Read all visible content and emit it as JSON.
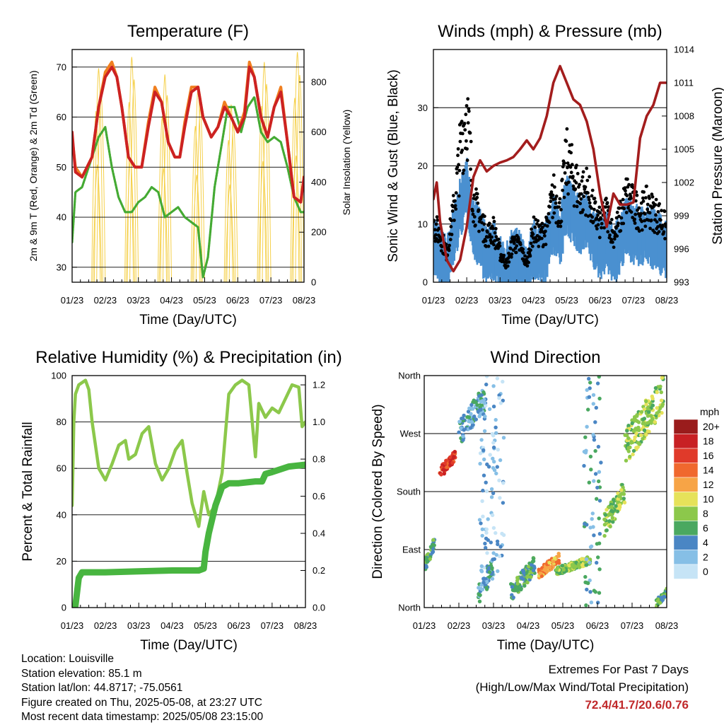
{
  "chart_data": [
    {
      "type": "line",
      "title": "Temperature (F)",
      "xlabel": "Time (Day/UTC)",
      "ylabel": "2m & 9m T (Red, Orange) & 2m Td (Green)",
      "ylabel_right": "Solar Insolation (Yellow)",
      "x_ticks": [
        "01/23",
        "02/23",
        "03/23",
        "04/23",
        "05/23",
        "06/23",
        "07/23",
        "08/23"
      ],
      "ylim": [
        27,
        73.5
      ],
      "y_ticks": [
        30,
        40,
        50,
        60,
        70
      ],
      "ylim_right": [
        0,
        930
      ],
      "y_ticks_right": [
        0,
        200,
        400,
        600,
        800
      ],
      "grid": "horizontal",
      "series": [
        {
          "color": "#cc2222",
          "x": [
            0.0,
            0.05,
            0.1,
            0.3,
            0.6,
            0.8,
            1.0,
            1.2,
            1.35,
            1.5,
            1.7,
            1.9,
            2.1,
            2.3,
            2.5,
            2.7,
            2.9,
            3.1,
            3.25,
            3.4,
            3.6,
            3.8,
            3.95,
            4.2,
            4.4,
            4.6,
            4.8,
            5.0,
            5.2,
            5.35,
            5.5,
            5.7,
            5.9,
            6.1,
            6.3,
            6.5,
            6.7,
            6.9,
            7.0
          ],
          "y": [
            57,
            53,
            49,
            48,
            52,
            62,
            68,
            70,
            68,
            62,
            52,
            50,
            50,
            58,
            65,
            63,
            55,
            52,
            52,
            58,
            65,
            66,
            60,
            56,
            58,
            62,
            60,
            57,
            60,
            70,
            68,
            60,
            56,
            62,
            65,
            55,
            44,
            43,
            48
          ]
        },
        {
          "color": "#f07f20",
          "x": [
            0.0,
            0.1,
            0.3,
            0.6,
            0.8,
            1.0,
            1.2,
            1.35,
            1.5,
            1.7,
            1.9,
            2.1,
            2.3,
            2.5,
            2.7,
            2.9,
            3.1,
            3.25,
            3.4,
            3.6,
            3.8,
            3.95,
            4.2,
            4.4,
            4.6,
            4.8,
            5.0,
            5.2,
            5.35,
            5.5,
            5.7,
            5.9,
            6.1,
            6.3,
            6.5,
            6.7,
            6.9,
            7.0
          ],
          "y": [
            56,
            50,
            48,
            52,
            62,
            69,
            71,
            68,
            62,
            52,
            50,
            50,
            59,
            66,
            63,
            55,
            52,
            52,
            59,
            66,
            66,
            60,
            56,
            58,
            63,
            60,
            57,
            61,
            71,
            68,
            60,
            56,
            62,
            66,
            55,
            44,
            43,
            48
          ]
        },
        {
          "color": "#44aa33",
          "x": [
            0.0,
            0.1,
            0.3,
            0.6,
            0.8,
            1.0,
            1.2,
            1.4,
            1.6,
            1.8,
            2.0,
            2.2,
            2.4,
            2.6,
            2.8,
            3.0,
            3.2,
            3.4,
            3.6,
            3.8,
            3.95,
            4.1,
            4.3,
            4.5,
            4.7,
            4.9,
            5.1,
            5.3,
            5.5,
            5.7,
            5.9,
            6.1,
            6.3,
            6.5,
            6.7,
            6.9,
            7.0
          ],
          "y": [
            35,
            45,
            46,
            52,
            56,
            58,
            50,
            44,
            41,
            41,
            43,
            44,
            46,
            45,
            40,
            41,
            42,
            40,
            39,
            38,
            28,
            32,
            46,
            54,
            62,
            62,
            57,
            62,
            64,
            57,
            55,
            56,
            55,
            50,
            44,
            41,
            41
          ]
        },
        {
          "color": "#f5d04a",
          "daily_peaks": [
            855,
            900,
            830,
            780,
            710,
            880,
            920,
            900
          ]
        }
      ]
    },
    {
      "type": "scatter",
      "title": "Winds (mph) & Pressure (mb)",
      "xlabel": "Time (Day/UTC)",
      "ylabel": "Sonic Wind & Gust (Blue, Black)",
      "ylabel_right": "Station Pressure (Maroon)",
      "x_ticks": [
        "01/23",
        "02/23",
        "03/23",
        "04/23",
        "05/23",
        "06/23",
        "07/23",
        "08/23"
      ],
      "ylim": [
        0,
        40
      ],
      "y_ticks": [
        0,
        10,
        20,
        30
      ],
      "ylim_right": [
        993,
        1014
      ],
      "y_ticks_right": [
        993,
        996,
        999,
        1002,
        1005,
        1008,
        1011,
        1014
      ],
      "grid": "horizontal",
      "series": [
        {
          "color": "#4a90d0",
          "x": [
            0.0,
            0.2,
            0.4,
            0.6,
            0.8,
            1.0,
            1.2,
            1.4,
            1.6,
            1.8,
            2.0,
            2.2,
            2.4,
            2.6,
            2.8,
            3.0,
            3.2,
            3.4,
            3.6,
            3.8,
            4.0,
            4.2,
            4.4,
            4.6,
            4.8,
            5.0,
            5.2,
            5.4,
            5.6,
            5.8,
            6.0,
            6.2,
            6.4,
            6.6,
            6.8,
            7.0
          ],
          "y": [
            7,
            5,
            3,
            8,
            13,
            17,
            10,
            8,
            5,
            6,
            3,
            2,
            5,
            4,
            1,
            6,
            5,
            6,
            11,
            8,
            14,
            12,
            10,
            11,
            8,
            6,
            8,
            5,
            7,
            10,
            9,
            8,
            9,
            8,
            7,
            6
          ]
        },
        {
          "color": "#000000",
          "x": [
            0.0,
            0.2,
            0.4,
            0.6,
            0.8,
            1.0,
            1.2,
            1.4,
            1.6,
            1.8,
            2.0,
            2.2,
            2.4,
            2.6,
            2.8,
            3.0,
            3.2,
            3.4,
            3.6,
            3.8,
            4.0,
            4.2,
            4.4,
            4.6,
            4.8,
            5.0,
            5.2,
            5.4,
            5.6,
            5.8,
            6.0,
            6.2,
            6.4,
            6.6,
            6.8,
            7.0
          ],
          "y": [
            10,
            8,
            5,
            12,
            22,
            30,
            14,
            11,
            8,
            9,
            5,
            3,
            7,
            6,
            3,
            9,
            8,
            9,
            15,
            12,
            21,
            18,
            15,
            16,
            12,
            10,
            12,
            8,
            11,
            15,
            13,
            12,
            13,
            12,
            11,
            9
          ]
        },
        {
          "color": "#a31d1d",
          "x": [
            0.0,
            0.1,
            0.2,
            0.4,
            0.6,
            0.8,
            1.0,
            1.2,
            1.4,
            1.6,
            1.8,
            2.0,
            2.2,
            2.4,
            2.6,
            2.8,
            3.0,
            3.2,
            3.4,
            3.6,
            3.8,
            4.0,
            4.2,
            4.4,
            4.6,
            4.8,
            5.0,
            5.2,
            5.4,
            5.6,
            5.8,
            6.0,
            6.2,
            6.4,
            6.6,
            6.8,
            7.0
          ],
          "y": [
            1000.5,
            1002,
            998.5,
            995,
            994,
            995,
            998,
            1002.5,
            1004,
            1003,
            1003.5,
            1003.8,
            1004,
            1004.3,
            1005,
            1005.8,
            1005,
            1006,
            1008,
            1011,
            1012.5,
            1011,
            1009.5,
            1009,
            1007.5,
            1005,
            1001,
            998,
            1001,
            1000,
            1000,
            1000.2,
            1006,
            1008,
            1009,
            1011,
            1011
          ]
        }
      ]
    },
    {
      "type": "line",
      "title": "Relative Humidity (%) & Precipitation (in)",
      "xlabel": "Time (Day/UTC)",
      "ylabel": "Percent & Total Rainfall",
      "x_ticks": [
        "01/23",
        "02/23",
        "03/23",
        "04/23",
        "05/23",
        "06/23",
        "07/23",
        "08/23"
      ],
      "ylim": [
        0,
        100
      ],
      "y_ticks": [
        0,
        20,
        40,
        60,
        80,
        100
      ],
      "ylim_right": [
        0,
        1.25
      ],
      "y_ticks_right": [
        "0.0",
        "0.2",
        "0.4",
        "0.6",
        "0.8",
        "1.0",
        "1.2"
      ],
      "grid": "horizontal",
      "series": [
        {
          "color": "#8cc84b",
          "x": [
            0.0,
            0.05,
            0.1,
            0.2,
            0.4,
            0.5,
            0.6,
            0.8,
            1.0,
            1.2,
            1.4,
            1.6,
            1.7,
            1.9,
            2.1,
            2.3,
            2.5,
            2.7,
            2.9,
            3.1,
            3.3,
            3.45,
            3.6,
            3.8,
            3.95,
            4.1,
            4.3,
            4.5,
            4.7,
            4.9,
            5.1,
            5.3,
            5.5,
            5.6,
            5.8,
            6.0,
            6.2,
            6.4,
            6.6,
            6.8,
            6.9,
            7.0
          ],
          "y": [
            44,
            80,
            92,
            96,
            98,
            94,
            80,
            60,
            55,
            62,
            70,
            72,
            64,
            66,
            75,
            78,
            62,
            55,
            60,
            68,
            72,
            58,
            45,
            35,
            50,
            40,
            44,
            58,
            92,
            96,
            98,
            96,
            65,
            88,
            82,
            86,
            84,
            90,
            96,
            95,
            78,
            80
          ]
        },
        {
          "color": "#48b540",
          "x": [
            0.0,
            0.1,
            0.2,
            0.3,
            0.5,
            1.0,
            2.0,
            3.0,
            3.8,
            3.95,
            4.0,
            4.1,
            4.3,
            4.4,
            4.5,
            4.7,
            5.0,
            5.5,
            5.7,
            5.8,
            6.0,
            6.5,
            7.0
          ],
          "y": [
            0.0,
            0.01,
            0.16,
            0.19,
            0.19,
            0.19,
            0.195,
            0.2,
            0.2,
            0.21,
            0.3,
            0.4,
            0.55,
            0.6,
            0.65,
            0.67,
            0.67,
            0.68,
            0.68,
            0.72,
            0.73,
            0.76,
            0.77
          ]
        }
      ]
    },
    {
      "type": "scatter",
      "title": "Wind Direction",
      "xlabel": "Time (Day/UTC)",
      "ylabel": "Direction (Colored By Speed)",
      "x_ticks": [
        "01/23",
        "02/23",
        "03/23",
        "04/23",
        "05/23",
        "06/23",
        "07/23",
        "08/23"
      ],
      "y_ticks": [
        "North",
        "East",
        "South",
        "West",
        "North"
      ],
      "ylim": [
        0,
        360
      ],
      "grid": "horizontal",
      "legend": {
        "title": "mph",
        "placement": "right",
        "labels": [
          "20+",
          "18",
          "16",
          "14",
          "12",
          "10",
          "8",
          "6",
          "4",
          "2",
          "0"
        ],
        "colors": [
          "#9a1c1c",
          "#c82024",
          "#e03a2a",
          "#f0682e",
          "#f7a446",
          "#e6e25a",
          "#8cc84b",
          "#4aa860",
          "#4a86c4",
          "#86bfe6",
          "#c6e4f6"
        ]
      },
      "clusters": [
        {
          "x": [
            0.0,
            0.3
          ],
          "dir": [
            55,
            110
          ],
          "speed": 6
        },
        {
          "x": [
            0.45,
            0.9
          ],
          "dir": [
            200,
            245
          ],
          "speed": 16
        },
        {
          "x": [
            1.0,
            1.8
          ],
          "dir": [
            250,
            350
          ],
          "speed": 4
        },
        {
          "x": [
            1.6,
            2.3
          ],
          "dir": [
            50,
            360
          ],
          "speed": 2
        },
        {
          "x": [
            1.55,
            2.0
          ],
          "dir": [
            0,
            80
          ],
          "speed": 4
        },
        {
          "x": [
            2.5,
            3.2
          ],
          "dir": [
            10,
            80
          ],
          "speed": 6
        },
        {
          "x": [
            3.3,
            3.9
          ],
          "dir": [
            45,
            85
          ],
          "speed": 12
        },
        {
          "x": [
            3.8,
            4.8
          ],
          "dir": [
            50,
            80
          ],
          "speed": 8
        },
        {
          "x": [
            4.6,
            5.1
          ],
          "dir": [
            0,
            360
          ],
          "speed": 4
        },
        {
          "x": [
            5.2,
            5.8
          ],
          "dir": [
            110,
            200
          ],
          "speed": 8
        },
        {
          "x": [
            5.8,
            6.9
          ],
          "dir": [
            220,
            360
          ],
          "speed": 8
        },
        {
          "x": [
            6.7,
            7.0
          ],
          "dir": [
            0,
            30
          ],
          "speed": 6
        }
      ]
    }
  ],
  "info": {
    "location": "Location: Louisville",
    "elevation": "Station elevation: 85.1 m",
    "latlon": "Station lat/lon: 44.8717; -75.0561",
    "created": "Figure created on Thu, 2025-05-08, at 23:27 UTC",
    "recent": "Most recent data timestamp: 2025/05/08 23:15:00"
  },
  "extremes": {
    "title": "Extremes For Past 7 Days",
    "subtitle": "(High/Low/Max Wind/Total Precipitation)",
    "values": "72.4/41.7/20.6/0.76"
  }
}
